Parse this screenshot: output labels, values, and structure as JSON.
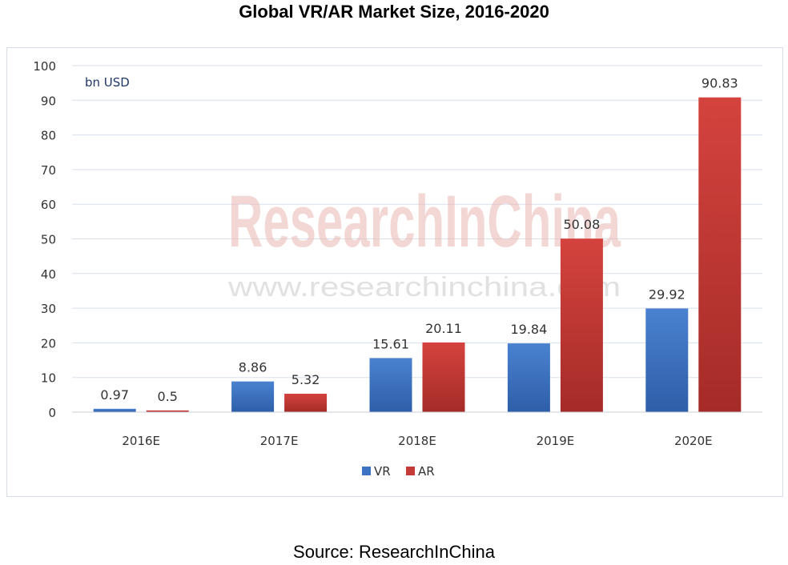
{
  "title": "Global VR/AR Market Size, 2016-2020",
  "source": "Source: ResearchInChina",
  "watermark": {
    "brand": "ResearchInChina",
    "url": "www.researchinchina.com"
  },
  "chart_data": {
    "type": "bar",
    "unit_label": "bn USD",
    "categories": [
      "2016E",
      "2017E",
      "2018E",
      "2019E",
      "2020E"
    ],
    "series": [
      {
        "name": "VR",
        "color": "#3d73c2",
        "values": [
          0.97,
          8.86,
          15.61,
          19.84,
          29.92
        ]
      },
      {
        "name": "AR",
        "color": "#c43a36",
        "values": [
          0.5,
          5.32,
          20.11,
          50.08,
          90.83
        ]
      }
    ],
    "ylim": [
      0,
      100
    ],
    "yticks": [
      0,
      10,
      20,
      30,
      40,
      50,
      60,
      70,
      80,
      90,
      100
    ],
    "grid": true,
    "legend": "bottom"
  }
}
